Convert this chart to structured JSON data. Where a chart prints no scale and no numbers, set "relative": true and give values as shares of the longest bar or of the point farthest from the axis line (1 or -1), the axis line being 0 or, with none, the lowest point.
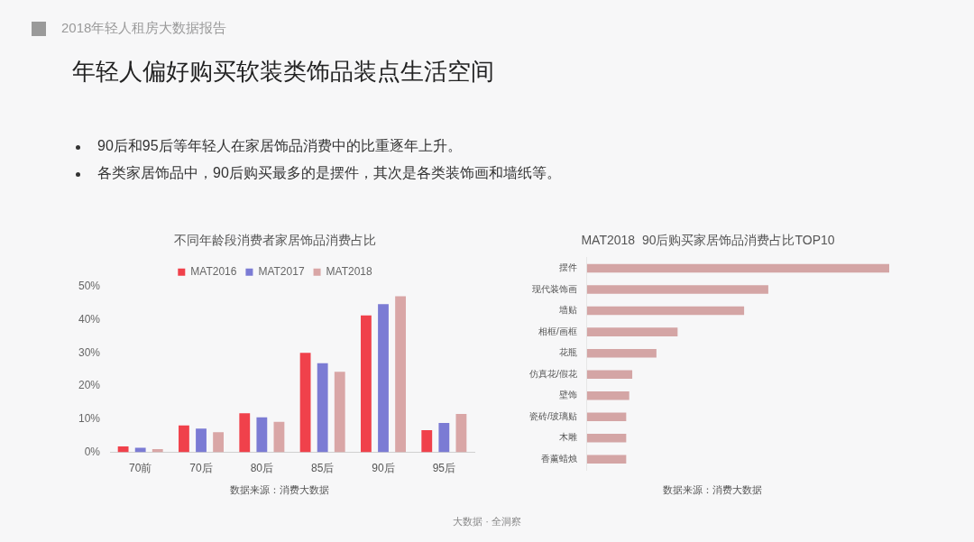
{
  "chart_data": [
    {
      "type": "other",
      "title": "年轻人偏好购买软装类饰品装点生活空间",
      "subtitle": "2018年轻人租房大数据报告",
      "annotations": [
        "90后和95后等年轻人在家居饰品消费中的比重逐年上升。",
        "各类家居饰品中，90后购买最多的是摆件，其次是各类装饰画和墙纸等。",
        "大数据 · 全洞察"
      ]
    },
    {
      "type": "bar",
      "title": "不同年龄段消费者家居饰品消费占比",
      "categories": [
        "70前",
        "70后",
        "80后",
        "85后",
        "90后",
        "95后"
      ],
      "series": [
        {
          "name": "MAT2016",
          "color": "#f0414b",
          "values": [
            1.8,
            8.1,
            11.8,
            30.0,
            41.3,
            6.7
          ]
        },
        {
          "name": "MAT2017",
          "color": "#7b7bd4",
          "values": [
            1.4,
            7.2,
            10.6,
            26.9,
            44.7,
            8.9
          ]
        },
        {
          "name": "MAT2018",
          "color": "#d9a6a6",
          "values": [
            1.0,
            6.1,
            9.2,
            24.3,
            47.1,
            11.6
          ]
        }
      ],
      "ylim": [
        0,
        50
      ],
      "yticks": [
        {
          "value": 0,
          "label": "0%"
        },
        {
          "value": 10,
          "label": "10%"
        },
        {
          "value": 20,
          "label": "20%"
        },
        {
          "value": 30,
          "label": "30%"
        },
        {
          "value": 40,
          "label": "40%"
        },
        {
          "value": 50,
          "label": "50%"
        }
      ],
      "legend": "top",
      "annotations": [
        "数据来源：消费大数据"
      ]
    },
    {
      "type": "bar",
      "orientation": "horizontal",
      "relative": true,
      "title": "MAT2018  90后购买家居饰品消费占比TOP10",
      "categories": [
        "摆件",
        "现代装饰画",
        "墙贴",
        "相框/画框",
        "花瓶",
        "仿真花/假花",
        "壁饰",
        "瓷砖/玻璃贴",
        "木雕",
        "香薰蜡烛"
      ],
      "values": [
        1,
        0.6,
        0.52,
        0.3,
        0.23,
        0.15,
        0.14,
        0.13,
        0.13,
        0.13
      ],
      "color": "#d4a5a5",
      "annotations": [
        "数据来源：消费大数据"
      ]
    }
  ]
}
